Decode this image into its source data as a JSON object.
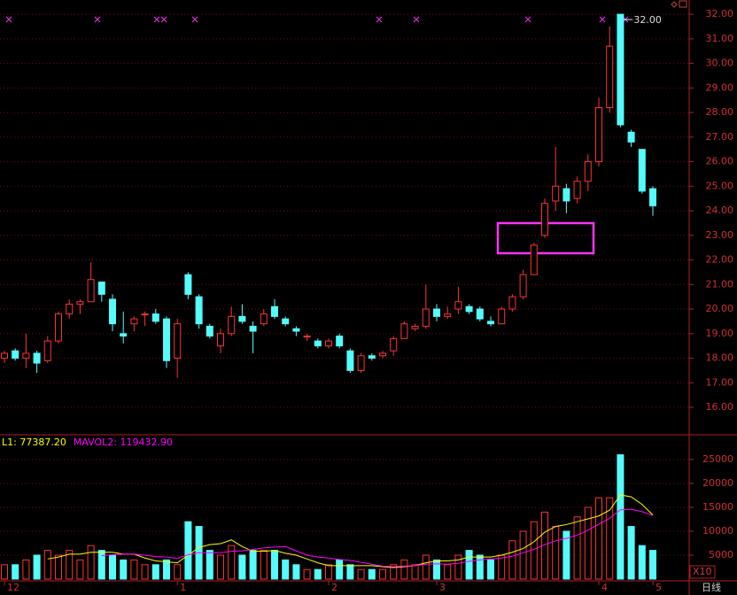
{
  "chart_data": [
    {
      "type": "candlestick",
      "categories": [
        "12",
        null,
        null,
        null,
        null,
        null,
        null,
        null,
        null,
        null,
        null,
        null,
        null,
        null,
        null,
        null,
        "1",
        null,
        null,
        null,
        null,
        null,
        null,
        null,
        null,
        null,
        null,
        null,
        null,
        null,
        "2",
        null,
        null,
        null,
        null,
        null,
        null,
        null,
        null,
        null,
        "3",
        null,
        null,
        null,
        null,
        null,
        null,
        null,
        null,
        null,
        null,
        null,
        null,
        null,
        null,
        "4",
        null,
        null,
        null,
        null,
        "5"
      ],
      "open": [
        18.0,
        18.3,
        18.0,
        18.2,
        17.9,
        18.7,
        19.8,
        20.2,
        20.3,
        21.1,
        20.4,
        19.0,
        19.4,
        19.8,
        19.8,
        19.6,
        18.0,
        21.4,
        20.5,
        19.3,
        18.5,
        19.0,
        19.7,
        19.3,
        19.4,
        20.1,
        19.6,
        19.2,
        18.9,
        18.7,
        18.5,
        18.9,
        18.3,
        17.5,
        18.1,
        18.1,
        18.3,
        18.8,
        19.2,
        19.3,
        20.0,
        19.7,
        20.0,
        20.1,
        20.0,
        19.5,
        19.4,
        20.0,
        20.5,
        21.4,
        23.0,
        24.4,
        24.9,
        24.5,
        25.2,
        26.0,
        28.2,
        32.0,
        27.2,
        26.5,
        24.9
      ],
      "high": [
        18.3,
        18.4,
        19.0,
        18.3,
        18.9,
        19.9,
        20.4,
        20.4,
        21.9,
        21.1,
        20.6,
        19.9,
        19.7,
        19.9,
        20.0,
        19.7,
        19.6,
        21.5,
        20.6,
        19.4,
        19.2,
        20.1,
        20.2,
        19.5,
        20.0,
        20.4,
        19.7,
        19.3,
        19.0,
        18.8,
        18.8,
        19.0,
        18.4,
        18.2,
        18.2,
        18.3,
        18.9,
        19.5,
        19.4,
        21.0,
        20.2,
        20.1,
        20.9,
        20.2,
        20.1,
        19.7,
        20.1,
        20.6,
        21.6,
        22.7,
        24.5,
        26.6,
        25.1,
        25.4,
        26.3,
        28.6,
        31.5,
        32.0,
        27.3,
        26.5,
        25.0
      ],
      "low": [
        17.8,
        17.9,
        17.6,
        17.4,
        17.8,
        18.6,
        19.6,
        19.8,
        20.3,
        20.3,
        19.1,
        18.6,
        19.1,
        19.3,
        19.4,
        17.6,
        17.2,
        20.4,
        19.2,
        18.8,
        18.2,
        18.9,
        19.4,
        18.2,
        19.3,
        19.6,
        19.3,
        18.9,
        18.7,
        18.4,
        18.4,
        18.4,
        17.4,
        17.4,
        17.9,
        18.0,
        18.1,
        18.8,
        19.1,
        19.2,
        19.5,
        19.6,
        19.8,
        19.8,
        19.5,
        19.3,
        19.4,
        19.9,
        20.4,
        21.4,
        22.9,
        24.0,
        23.9,
        24.3,
        24.8,
        25.8,
        28.0,
        27.4,
        26.6,
        24.7,
        23.8
      ],
      "close": [
        18.2,
        18.0,
        18.2,
        17.8,
        18.7,
        19.8,
        20.2,
        20.3,
        21.2,
        20.6,
        19.4,
        18.9,
        19.6,
        19.8,
        19.5,
        17.9,
        19.4,
        20.6,
        19.4,
        18.9,
        19.0,
        19.7,
        19.5,
        19.1,
        19.8,
        19.7,
        19.4,
        19.1,
        18.9,
        18.5,
        18.7,
        18.5,
        17.5,
        18.1,
        18.0,
        18.2,
        18.8,
        19.4,
        19.3,
        20.0,
        19.7,
        19.8,
        20.3,
        19.9,
        19.6,
        19.4,
        20.0,
        20.5,
        21.4,
        22.6,
        24.3,
        25.0,
        24.4,
        25.2,
        26.0,
        28.2,
        30.7,
        27.5,
        26.8,
        24.8,
        24.2
      ],
      "up_color": "#ff3232",
      "down_color": "#54fcfc",
      "ylim": [
        14.92,
        32.58
      ],
      "yticks": [
        {
          "value": 16,
          "label": "16.00"
        },
        {
          "value": 17,
          "label": "17.00"
        },
        {
          "value": 18,
          "label": "18.00"
        },
        {
          "value": 19,
          "label": "19.00"
        },
        {
          "value": 20,
          "label": "20.00"
        },
        {
          "value": 21,
          "label": "21.00"
        },
        {
          "value": 22,
          "label": "22.00"
        },
        {
          "value": 23,
          "label": "23.00"
        },
        {
          "value": 24,
          "label": "24.00"
        },
        {
          "value": 25,
          "label": "25.00"
        },
        {
          "value": 26,
          "label": "26.00"
        },
        {
          "value": 27,
          "label": "27.00"
        },
        {
          "value": 28,
          "label": "28.00"
        },
        {
          "value": 29,
          "label": "29.00"
        },
        {
          "value": 30,
          "label": "30.00"
        },
        {
          "value": 31,
          "label": "31.00"
        },
        {
          "value": 32,
          "label": "32.00"
        }
      ],
      "grid": true,
      "annotations": [
        {
          "value": 32,
          "label": "32.00"
        }
      ],
      "period_label": "日线"
    },
    {
      "type": "bar",
      "values": [
        3000,
        3000,
        4000,
        5000,
        6000,
        5000,
        6000,
        4000,
        7000,
        6000,
        5000,
        4000,
        4000,
        3000,
        3000,
        4000,
        3000,
        12000,
        11000,
        6000,
        5000,
        7000,
        5000,
        6000,
        6000,
        6000,
        4000,
        3000,
        2000,
        2000,
        3000,
        4000,
        3000,
        2000,
        2000,
        2000,
        3000,
        4000,
        3000,
        5000,
        4000,
        3000,
        5000,
        6000,
        5000,
        4000,
        5000,
        8000,
        10000,
        12000,
        14000,
        11000,
        10000,
        13000,
        15000,
        17000,
        17000,
        26000,
        11000,
        7000,
        6000
      ],
      "series": [
        {
          "name": "L1: 77387.20",
          "color": "#ffff00",
          "values": [
            null,
            null,
            null,
            null,
            4200,
            4600,
            5200,
            5200,
            5600,
            5600,
            5600,
            5200,
            5200,
            4400,
            3800,
            3600,
            3400,
            5000,
            6600,
            7200,
            7400,
            8200,
            6800,
            5800,
            5800,
            6000,
            5400,
            5000,
            4200,
            3400,
            2800,
            2800,
            2800,
            2800,
            2800,
            2600,
            2400,
            2600,
            2800,
            3400,
            3800,
            3800,
            4000,
            4600,
            4600,
            4600,
            5000,
            5600,
            6400,
            7800,
            9800,
            11000,
            11400,
            12000,
            12600,
            13200,
            14400,
            17600,
            17200,
            15600,
            13400
          ]
        },
        {
          "name": "MAVOL2: 119432.90",
          "color": "#ff00ff",
          "values": [
            null,
            null,
            null,
            null,
            null,
            null,
            null,
            null,
            null,
            4900,
            5100,
            5200,
            5200,
            5000,
            4700,
            4600,
            4300,
            5100,
            5500,
            5500,
            5500,
            5800,
            5900,
            6200,
            6500,
            6700,
            6800,
            5900,
            5000,
            4600,
            4400,
            4100,
            3900,
            3500,
            3100,
            2700,
            2600,
            2700,
            2800,
            3100,
            3200,
            3100,
            3300,
            3700,
            4000,
            4200,
            4400,
            4800,
            5500,
            6200,
            7200,
            8000,
            8500,
            9200,
            10200,
            11500,
            12700,
            14500,
            14600,
            14100,
            13300
          ]
        }
      ],
      "ylim": [
        0,
        30000
      ],
      "yticks": [
        5000,
        10000,
        15000,
        20000,
        25000
      ],
      "grid": true,
      "unit_label": "X10"
    }
  ]
}
